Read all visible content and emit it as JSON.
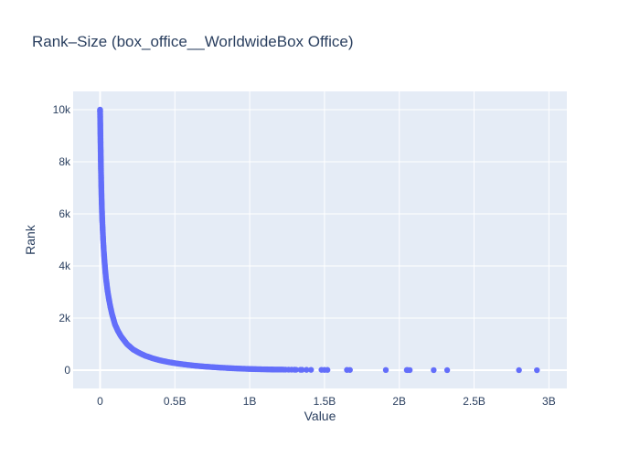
{
  "chart_data": {
    "type": "scatter",
    "title": "Rank–Size (box_office__WorldwideBox Office)",
    "xlabel": "Value",
    "ylabel": "Rank",
    "xlim": [
      -180000000,
      3120000000
    ],
    "ylim": [
      -700,
      10700
    ],
    "xticks": [
      0,
      500000000,
      1000000000,
      1500000000,
      2000000000,
      2500000000,
      3000000000
    ],
    "xtick_labels": [
      "0",
      "0.5B",
      "1B",
      "1.5B",
      "2B",
      "2.5B",
      "3B"
    ],
    "yticks": [
      0,
      2000,
      4000,
      6000,
      8000,
      10000
    ],
    "ytick_labels": [
      "0",
      "2k",
      "4k",
      "6k",
      "8k",
      "10k"
    ],
    "grid": true,
    "marker_color": "#636efa",
    "background_color": "#e5ecf6",
    "series": [
      {
        "points": [
          [
            2920000000,
            1
          ],
          [
            2800000000,
            2
          ],
          [
            2320000000,
            3
          ],
          [
            2230000000,
            4
          ],
          [
            2070000000,
            5
          ],
          [
            2055000000,
            6
          ],
          [
            2050000000,
            7
          ],
          [
            1910000000,
            8
          ],
          [
            1670000000,
            9
          ],
          [
            1650000000,
            10
          ],
          [
            1520000000,
            11
          ],
          [
            1500000000,
            12
          ],
          [
            1480000000,
            13
          ],
          [
            1410000000,
            14
          ],
          [
            1380000000,
            15
          ],
          [
            1350000000,
            16
          ],
          [
            1340000000,
            17
          ],
          [
            1310000000,
            18
          ],
          [
            1300000000,
            19
          ],
          [
            1280000000,
            20
          ],
          [
            1260000000,
            21
          ],
          [
            1240000000,
            22
          ],
          [
            1230000000,
            23
          ],
          [
            1220000000,
            24
          ],
          [
            1160000000,
            26
          ],
          [
            1150000000,
            28
          ],
          [
            1140000000,
            30
          ],
          [
            1100000000,
            34
          ],
          [
            1050000000,
            40
          ],
          [
            1000000000,
            48
          ],
          [
            950000000,
            58
          ],
          [
            900000000,
            70
          ],
          [
            850000000,
            85
          ],
          [
            800000000,
            100
          ],
          [
            750000000,
            120
          ],
          [
            700000000,
            140
          ],
          [
            650000000,
            165
          ],
          [
            600000000,
            195
          ],
          [
            550000000,
            230
          ],
          [
            500000000,
            270
          ],
          [
            450000000,
            320
          ],
          [
            400000000,
            380
          ],
          [
            350000000,
            460
          ],
          [
            300000000,
            560
          ],
          [
            270000000,
            640
          ],
          [
            250000000,
            700
          ],
          [
            220000000,
            800
          ],
          [
            200000000,
            900
          ],
          [
            180000000,
            1000
          ],
          [
            160000000,
            1150
          ],
          [
            140000000,
            1300
          ],
          [
            120000000,
            1500
          ],
          [
            100000000,
            1750
          ],
          [
            90000000,
            1950
          ],
          [
            80000000,
            2150
          ],
          [
            70000000,
            2400
          ],
          [
            60000000,
            2700
          ],
          [
            50000000,
            3050
          ],
          [
            40000000,
            3500
          ],
          [
            35000000,
            3800
          ],
          [
            30000000,
            4150
          ],
          [
            25000000,
            4550
          ],
          [
            20000000,
            5050
          ],
          [
            15000000,
            5700
          ],
          [
            12000000,
            6200
          ],
          [
            10000000,
            6600
          ],
          [
            8000000,
            7100
          ],
          [
            6000000,
            7700
          ],
          [
            4000000,
            8400
          ],
          [
            3000000,
            8800
          ],
          [
            2000000,
            9200
          ],
          [
            1000000,
            9600
          ],
          [
            500000,
            9800
          ],
          [
            200000,
            9900
          ],
          [
            50000,
            9960
          ],
          [
            10000,
            10000
          ]
        ]
      }
    ]
  }
}
